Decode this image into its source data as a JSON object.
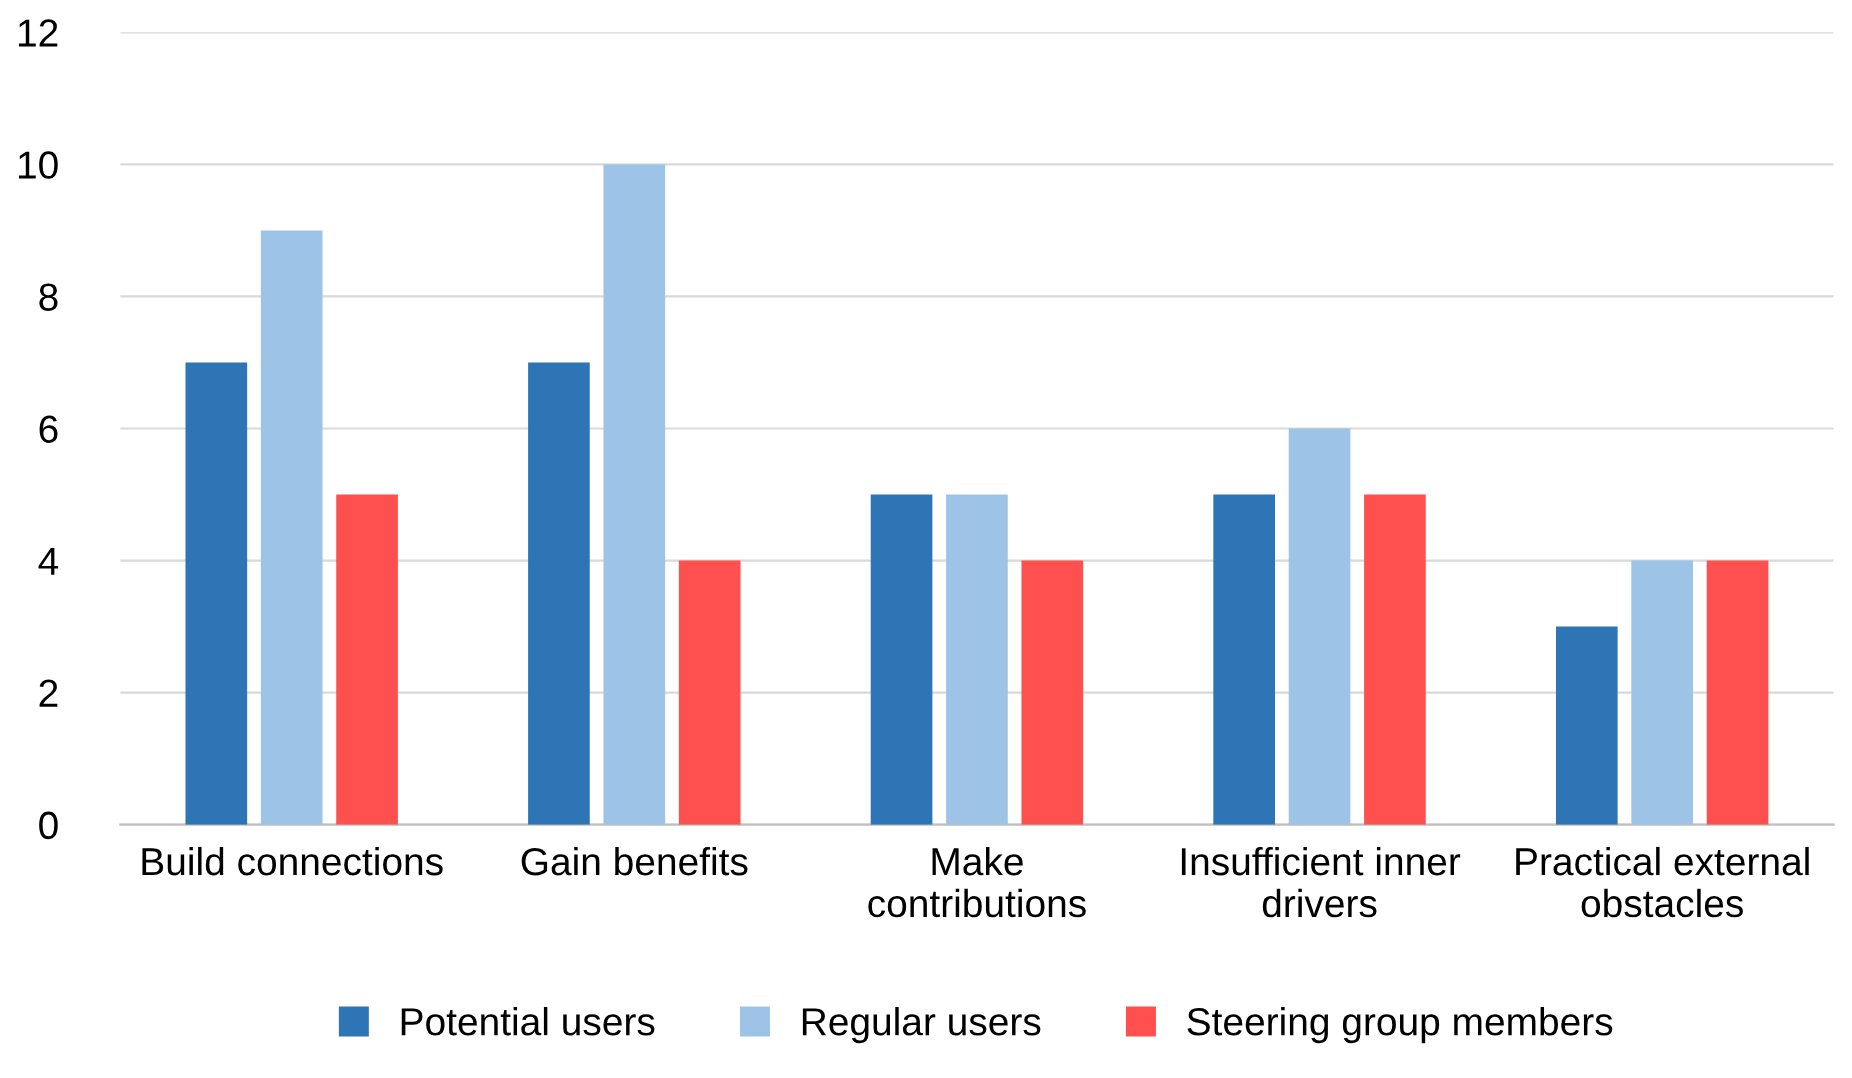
{
  "chart_data": {
    "type": "bar",
    "categories": [
      "Build connections",
      "Gain benefits",
      "Make\ncontributions",
      "Insufficient inner\ndrivers",
      "Practical external\nobstacles"
    ],
    "series": [
      {
        "name": "Potential users",
        "color": "#2e75b6",
        "values": [
          7,
          7,
          5,
          5,
          3
        ]
      },
      {
        "name": "Regular users",
        "color": "#9dc3e6",
        "values": [
          9,
          10,
          5,
          6,
          4
        ]
      },
      {
        "name": "Steering group members",
        "color": "#ff5050",
        "values": [
          5,
          4,
          4,
          5,
          4
        ]
      }
    ],
    "ylim": [
      0,
      12
    ],
    "yticks": [
      0,
      2,
      4,
      6,
      8,
      10,
      12
    ],
    "grid": "y",
    "legend": "bottom"
  }
}
